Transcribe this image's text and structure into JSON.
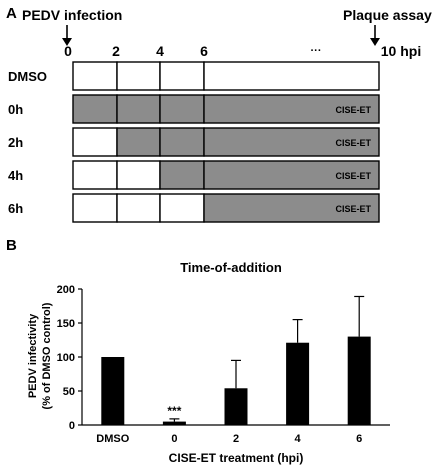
{
  "panel_a": {
    "label": "A",
    "start_event": "PEDV infection",
    "end_event": "Plaque assay",
    "time_ticks": [
      "0",
      "2",
      "4",
      "6",
      "···",
      "10 hpi"
    ],
    "drug_label": "CISE-ET",
    "rows": [
      {
        "label": "DMSO",
        "shaded_from_hpi": null
      },
      {
        "label": "0h",
        "shaded_from_hpi": 0
      },
      {
        "label": "2h",
        "shaded_from_hpi": 2
      },
      {
        "label": "4h",
        "shaded_from_hpi": 4
      },
      {
        "label": "6h",
        "shaded_from_hpi": 6
      }
    ],
    "colors": {
      "shaded": "#8c8c8c",
      "unshaded": "#ffffff",
      "border": "#000000"
    }
  },
  "panel_b": {
    "label": "B",
    "chart_data": {
      "type": "bar",
      "title": "Time-of-addition",
      "xlabel": "CISE-ET treatment (hpi)",
      "ylabel_lines": [
        "PEDV infectivity",
        "(% of DMSO control)"
      ],
      "categories": [
        "DMSO",
        "0",
        "2",
        "4",
        "6"
      ],
      "values": [
        100,
        5,
        54,
        121,
        130
      ],
      "error_upper": [
        0,
        9,
        95,
        155,
        189
      ],
      "annotations": [
        "",
        "***",
        "",
        "",
        ""
      ],
      "ylim": [
        0,
        200
      ],
      "yticks": [
        "0",
        "50",
        "100",
        "150",
        "200"
      ],
      "grid": false,
      "bar_color": "#000000"
    }
  }
}
